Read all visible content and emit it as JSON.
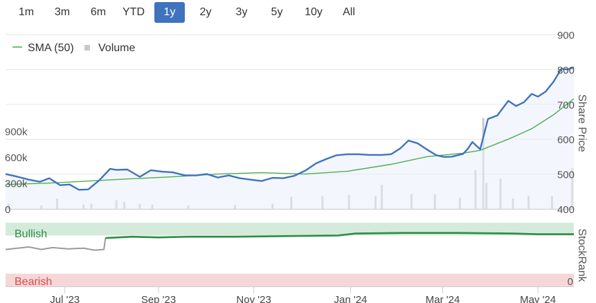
{
  "range_buttons": [
    {
      "label": "1m",
      "active": false
    },
    {
      "label": "3m",
      "active": false
    },
    {
      "label": "6m",
      "active": false
    },
    {
      "label": "YTD",
      "active": false
    },
    {
      "label": "1y",
      "active": true
    },
    {
      "label": "2y",
      "active": false
    },
    {
      "label": "3y",
      "active": false
    },
    {
      "label": "5y",
      "active": false
    },
    {
      "label": "10y",
      "active": false
    },
    {
      "label": "All",
      "active": false
    }
  ],
  "colors": {
    "price_line": "#3f73bd",
    "sma_line": "#4caf50",
    "volume_bar": "#c8c8c8",
    "accent": "#3f73bd",
    "bullish_band": "#d4ebdb",
    "bearish_band": "#f5d7d7",
    "stockrank_bull": "#2e8b46",
    "stockrank_neutral": "#9a9a9a",
    "bullish_text": "#2e8b46",
    "bearish_text": "#d44f4f"
  },
  "chart_data": [
    {
      "type": "line",
      "legend": [
        {
          "name": "SMA (50)",
          "marker": "line"
        },
        {
          "name": "Volume",
          "marker": "square"
        }
      ],
      "legend_placement": "top-left",
      "grid": true,
      "ylabel_right": "Share Price",
      "y_ticks_right": [
        "900",
        "800",
        "700",
        "600",
        "500",
        "400"
      ],
      "ylim_right": [
        400,
        900
      ],
      "y_ticks_left": [
        "900k",
        "600k",
        "300k",
        "0"
      ],
      "ylim_left": [
        0,
        1200000
      ],
      "xlim": [
        "2023-05-26",
        "2024-05-24"
      ],
      "x_tick_labels": [
        {
          "label": "Jul '23",
          "date": "2023-07-03"
        },
        {
          "label": "Sep '23",
          "date": "2023-09-01"
        },
        {
          "label": "Nov '23",
          "date": "2023-11-01"
        },
        {
          "label": "Jan '24",
          "date": "2024-01-02"
        },
        {
          "label": "Mar '24",
          "date": "2024-03-01"
        },
        {
          "label": "May '24",
          "date": "2024-05-01"
        }
      ],
      "series": [
        {
          "name": "Share Price",
          "x": [
            "2023-05-26",
            "2023-06-03",
            "2023-06-10",
            "2023-06-17",
            "2023-06-23",
            "2023-06-30",
            "2023-07-06",
            "2023-07-12",
            "2023-07-18",
            "2023-07-25",
            "2023-08-01",
            "2023-08-05",
            "2023-08-12",
            "2023-08-20",
            "2023-08-27",
            "2023-09-03",
            "2023-09-10",
            "2023-09-18",
            "2023-09-25",
            "2023-10-02",
            "2023-10-09",
            "2023-10-16",
            "2023-10-23",
            "2023-10-30",
            "2023-11-06",
            "2023-11-13",
            "2023-11-20",
            "2023-11-27",
            "2023-12-04",
            "2023-12-11",
            "2023-12-18",
            "2023-12-24",
            "2023-12-31",
            "2024-01-07",
            "2024-01-14",
            "2024-01-22",
            "2024-01-28",
            "2024-02-03",
            "2024-02-08",
            "2024-02-14",
            "2024-02-20",
            "2024-02-26",
            "2024-03-02",
            "2024-03-07",
            "2024-03-14",
            "2024-03-17",
            "2024-03-20",
            "2024-03-25",
            "2024-03-30",
            "2024-04-05",
            "2024-04-12",
            "2024-04-17",
            "2024-04-22",
            "2024-04-27",
            "2024-05-01",
            "2024-05-06",
            "2024-05-11",
            "2024-05-16",
            "2024-05-20",
            "2024-05-24"
          ],
          "values": [
            500,
            492,
            484,
            478,
            488,
            468,
            470,
            455,
            456,
            482,
            515,
            512,
            513,
            492,
            511,
            507,
            505,
            496,
            496,
            500,
            490,
            496,
            488,
            484,
            480,
            489,
            488,
            495,
            510,
            531,
            544,
            554,
            557,
            557,
            555,
            555,
            557,
            574,
            596,
            588,
            570,
            554,
            549,
            550,
            558,
            572,
            592,
            571,
            658,
            668,
            710,
            695,
            706,
            730,
            722,
            737,
            765,
            802,
            800,
            806
          ]
        },
        {
          "name": "SMA (50)",
          "x": [
            "2023-05-26",
            "2023-06-23",
            "2023-07-18",
            "2023-08-12",
            "2023-09-10",
            "2023-10-09",
            "2023-11-06",
            "2023-12-04",
            "2023-12-31",
            "2024-01-28",
            "2024-02-20",
            "2024-03-14",
            "2024-03-25",
            "2024-04-12",
            "2024-04-27",
            "2024-05-11",
            "2024-05-24"
          ],
          "values": [
            470,
            474,
            480,
            486,
            492,
            500,
            504,
            500,
            508,
            528,
            550,
            560,
            568,
            600,
            630,
            670,
            716
          ]
        },
        {
          "name": "Volume",
          "type": "bar",
          "x": [
            "2023-05-28",
            "2023-06-18",
            "2023-06-28",
            "2023-07-15",
            "2023-07-20",
            "2023-08-05",
            "2023-08-10",
            "2023-08-20",
            "2023-08-28",
            "2023-09-20",
            "2023-10-20",
            "2023-11-13",
            "2023-11-25",
            "2023-12-15",
            "2024-01-01",
            "2024-01-18",
            "2024-01-22",
            "2024-02-10",
            "2024-02-25",
            "2024-03-12",
            "2024-03-22",
            "2024-03-27",
            "2024-03-29",
            "2024-04-07",
            "2024-04-15",
            "2024-04-25",
            "2024-05-10",
            "2024-05-23"
          ],
          "values": [
            60000,
            40000,
            120000,
            50000,
            60000,
            100000,
            80000,
            60000,
            50000,
            40000,
            45000,
            60000,
            140000,
            150000,
            160000,
            150000,
            280000,
            170000,
            170000,
            130000,
            450000,
            1050000,
            300000,
            350000,
            120000,
            150000,
            150000,
            470000
          ]
        }
      ]
    },
    {
      "type": "line",
      "ylabel_right": "StockRank",
      "ylim": [
        0,
        100
      ],
      "y_ticks_right": [
        "0"
      ],
      "bands": [
        {
          "label": "Bullish",
          "from": 80,
          "to": 100
        },
        {
          "label": "Bearish",
          "from": 0,
          "to": 20
        }
      ],
      "series": [
        {
          "name": "StockRank",
          "x": [
            "2023-05-26",
            "2023-06-10",
            "2023-06-18",
            "2023-06-25",
            "2023-07-05",
            "2023-07-15",
            "2023-07-22",
            "2023-07-28",
            "2023-07-29",
            "2023-08-15",
            "2023-09-01",
            "2023-09-20",
            "2023-10-20",
            "2023-11-20",
            "2023-12-25",
            "2024-01-05",
            "2024-02-05",
            "2024-03-10",
            "2024-04-15",
            "2024-05-01",
            "2024-05-24"
          ],
          "values": [
            58,
            62,
            58,
            61,
            59,
            60,
            57,
            58,
            76,
            78,
            77,
            78,
            78,
            79,
            80,
            83,
            84,
            84,
            83,
            82,
            82
          ]
        }
      ]
    }
  ]
}
